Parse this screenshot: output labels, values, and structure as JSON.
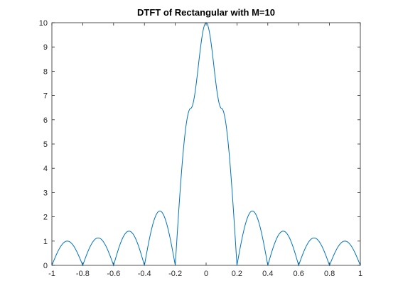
{
  "chart_data": {
    "type": "line",
    "title": "DTFT of Rectangular with M=10",
    "xlabel": "",
    "ylabel": "",
    "xlim": [
      -1,
      1
    ],
    "ylim": [
      0,
      10
    ],
    "x_ticks": [
      -1,
      -0.8,
      -0.6,
      -0.4,
      -0.2,
      0,
      0.2,
      0.4,
      0.6,
      0.8,
      1
    ],
    "x_tick_labels": [
      "-1",
      "-0.8",
      "-0.6",
      "-0.4",
      "-0.2",
      "0",
      "0.2",
      "0.4",
      "0.6",
      "0.8",
      "1"
    ],
    "y_ticks": [
      0,
      1,
      2,
      3,
      4,
      5,
      6,
      7,
      8,
      9,
      10
    ],
    "y_tick_labels": [
      "0",
      "1",
      "2",
      "3",
      "4",
      "5",
      "6",
      "7",
      "8",
      "9",
      "10"
    ],
    "grid": false,
    "legend": "none",
    "series": [
      {
        "color": "#0072BD",
        "x": [
          -1.0,
          -0.9,
          -0.8,
          -0.7,
          -0.6,
          -0.5,
          -0.4,
          -0.3,
          -0.2,
          -0.1,
          0.0,
          0.1,
          0.2,
          0.3,
          0.4,
          0.5,
          0.6,
          0.7,
          0.8,
          0.9,
          1.0
        ],
        "y": [
          0.0,
          1.0,
          0.0,
          1.13,
          0.0,
          1.41,
          0.0,
          2.24,
          0.0,
          6.47,
          10.0,
          6.47,
          0.0,
          2.24,
          0.0,
          1.41,
          0.0,
          1.13,
          0.0,
          1.0,
          0.0
        ]
      }
    ]
  }
}
